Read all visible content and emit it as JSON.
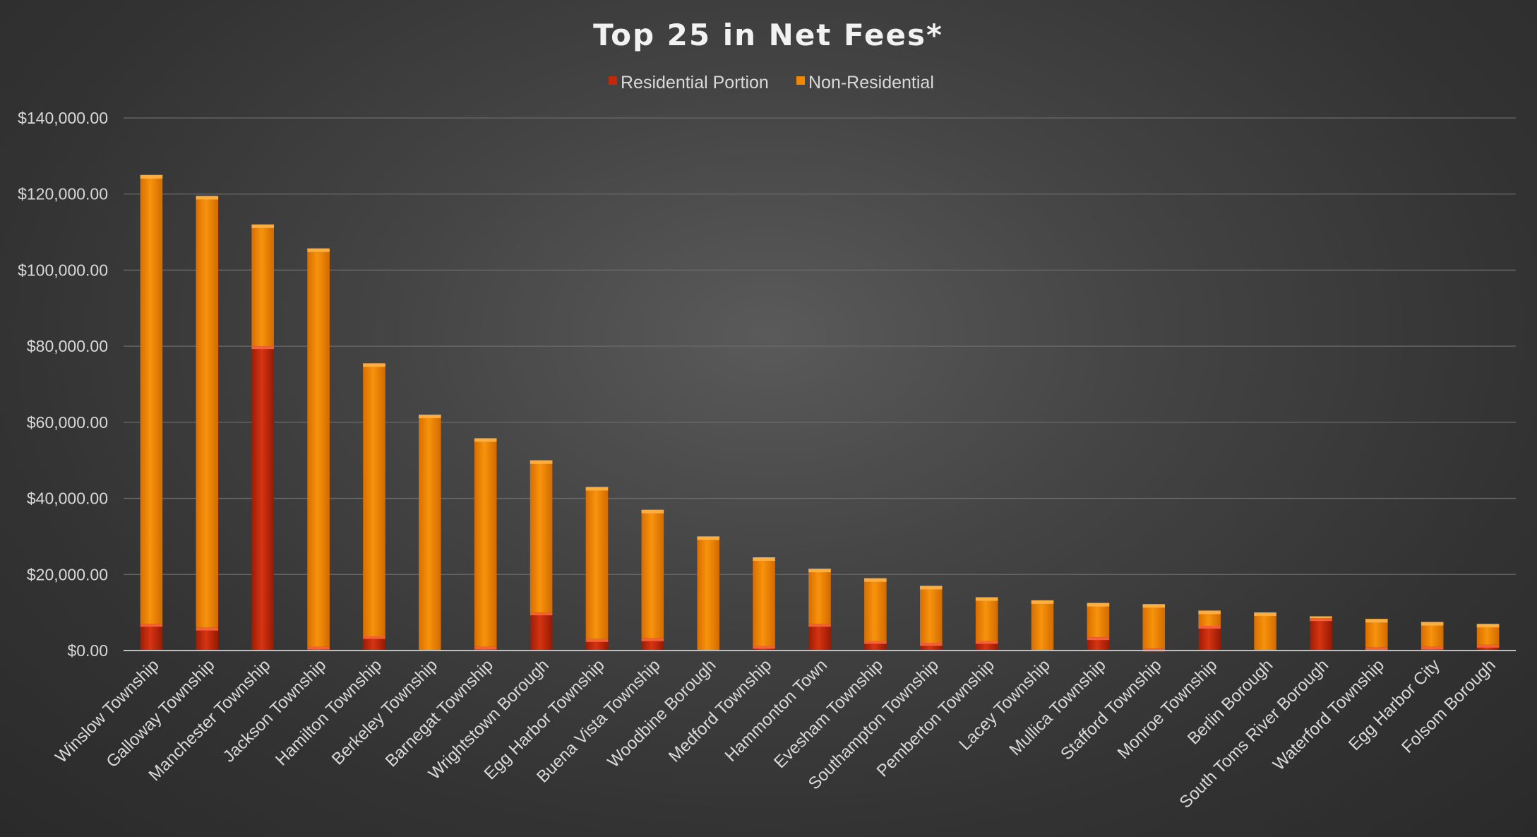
{
  "chart_data": {
    "type": "bar",
    "stacked": true,
    "title": "Top 25 in Net Fees*",
    "xlabel": "",
    "ylabel": "",
    "ylim": [
      0,
      140000
    ],
    "yticks": [
      0,
      20000,
      40000,
      60000,
      80000,
      100000,
      120000,
      140000
    ],
    "ytick_labels": [
      "$0.00",
      "$20,000.00",
      "$40,000.00",
      "$60,000.00",
      "$80,000.00",
      "$100,000.00",
      "$120,000.00",
      "$140,000.00"
    ],
    "grid": true,
    "legend_position": "top-center",
    "categories": [
      "Winslow Township",
      "Galloway Township",
      "Manchester Township",
      "Jackson Township",
      "Hamilton Township",
      "Berkeley Township",
      "Barnegat Township",
      "Wrightstown Borough",
      "Egg Harbor Township",
      "Buena Vista Township",
      "Woodbine Borough",
      "Medford Township",
      "Hammonton Town",
      "Evesham Township",
      "Southampton Township",
      "Pemberton Township",
      "Lacey Township",
      "Mullica Township",
      "Stafford Township",
      "Monroe Township",
      "Berlin Borough",
      "South Toms River Borough",
      "Waterford Township",
      "Egg Harbor City",
      "Folsom Borough"
    ],
    "series": [
      {
        "name": "Residential Portion",
        "color": "#c02a0a",
        "values": [
          7000,
          6000,
          80000,
          1000,
          3800,
          0,
          1000,
          10000,
          3000,
          3200,
          0,
          1200,
          7000,
          2500,
          2000,
          2500,
          0,
          3500,
          500,
          6500,
          0,
          8500,
          800,
          1000,
          1500
        ]
      },
      {
        "name": "Non-Residential",
        "color": "#f28705",
        "values": [
          118000,
          113500,
          32000,
          104700,
          71700,
          62000,
          54800,
          40000,
          40000,
          33800,
          30000,
          23300,
          14500,
          16500,
          15000,
          11500,
          13200,
          9000,
          11700,
          4000,
          10000,
          500,
          7500,
          6500,
          5500
        ]
      }
    ]
  }
}
